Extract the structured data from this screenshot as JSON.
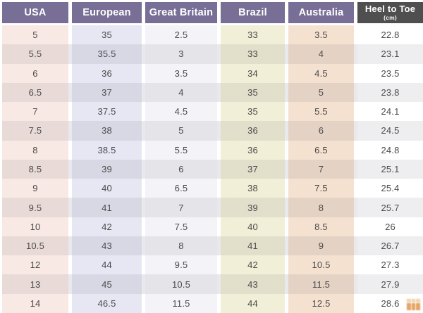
{
  "table": {
    "headers": [
      {
        "label": "USA"
      },
      {
        "label": "European"
      },
      {
        "label": "Great Britain"
      },
      {
        "label": "Brazil"
      },
      {
        "label": "Australia"
      },
      {
        "label": "Heel to Toe",
        "sublabel": "(cm)"
      }
    ],
    "rows": [
      [
        "5",
        "35",
        "2.5",
        "33",
        "3.5",
        "22.8"
      ],
      [
        "5.5",
        "35.5",
        "3",
        "33",
        "4",
        "23.1"
      ],
      [
        "6",
        "36",
        "3.5",
        "34",
        "4.5",
        "23.5"
      ],
      [
        "6.5",
        "37",
        "4",
        "35",
        "5",
        "23.8"
      ],
      [
        "7",
        "37.5",
        "4.5",
        "35",
        "5.5",
        "24.1"
      ],
      [
        "7.5",
        "38",
        "5",
        "36",
        "6",
        "24.5"
      ],
      [
        "8",
        "38.5",
        "5.5",
        "36",
        "6.5",
        "24.8"
      ],
      [
        "8.5",
        "39",
        "6",
        "37",
        "7",
        "25.1"
      ],
      [
        "9",
        "40",
        "6.5",
        "38",
        "7.5",
        "25.4"
      ],
      [
        "9.5",
        "41",
        "7",
        "39",
        "8",
        "25.7"
      ],
      [
        "10",
        "42",
        "7.5",
        "40",
        "8.5",
        "26"
      ],
      [
        "10.5",
        "43",
        "8",
        "41",
        "9",
        "26.7"
      ],
      [
        "12",
        "44",
        "9.5",
        "42",
        "10.5",
        "27.3"
      ],
      [
        "13",
        "45",
        "10.5",
        "43",
        "11.5",
        "27.9"
      ],
      [
        "14",
        "46.5",
        "11.5",
        "44",
        "12.5",
        "28.6"
      ]
    ]
  },
  "colors": {
    "header_bg": "#786e96",
    "header_dark_bg": "#4f4f4f",
    "header_text": "#ffffff",
    "body_text": "#4c4c4c",
    "row_stripe_flat": "#e9e8ec",
    "row_stripe_overlay": "rgba(88,82,99,0.10)",
    "columns": {
      "usa": "#f9e9e4",
      "european": "#e7e6f3",
      "great_britain": "#f4f4f8",
      "brazil": "#f1efd7",
      "australia": "#f4e1d0",
      "heel_to_toe": "#ffffff"
    }
  },
  "watermark_icon": "grid-logo"
}
